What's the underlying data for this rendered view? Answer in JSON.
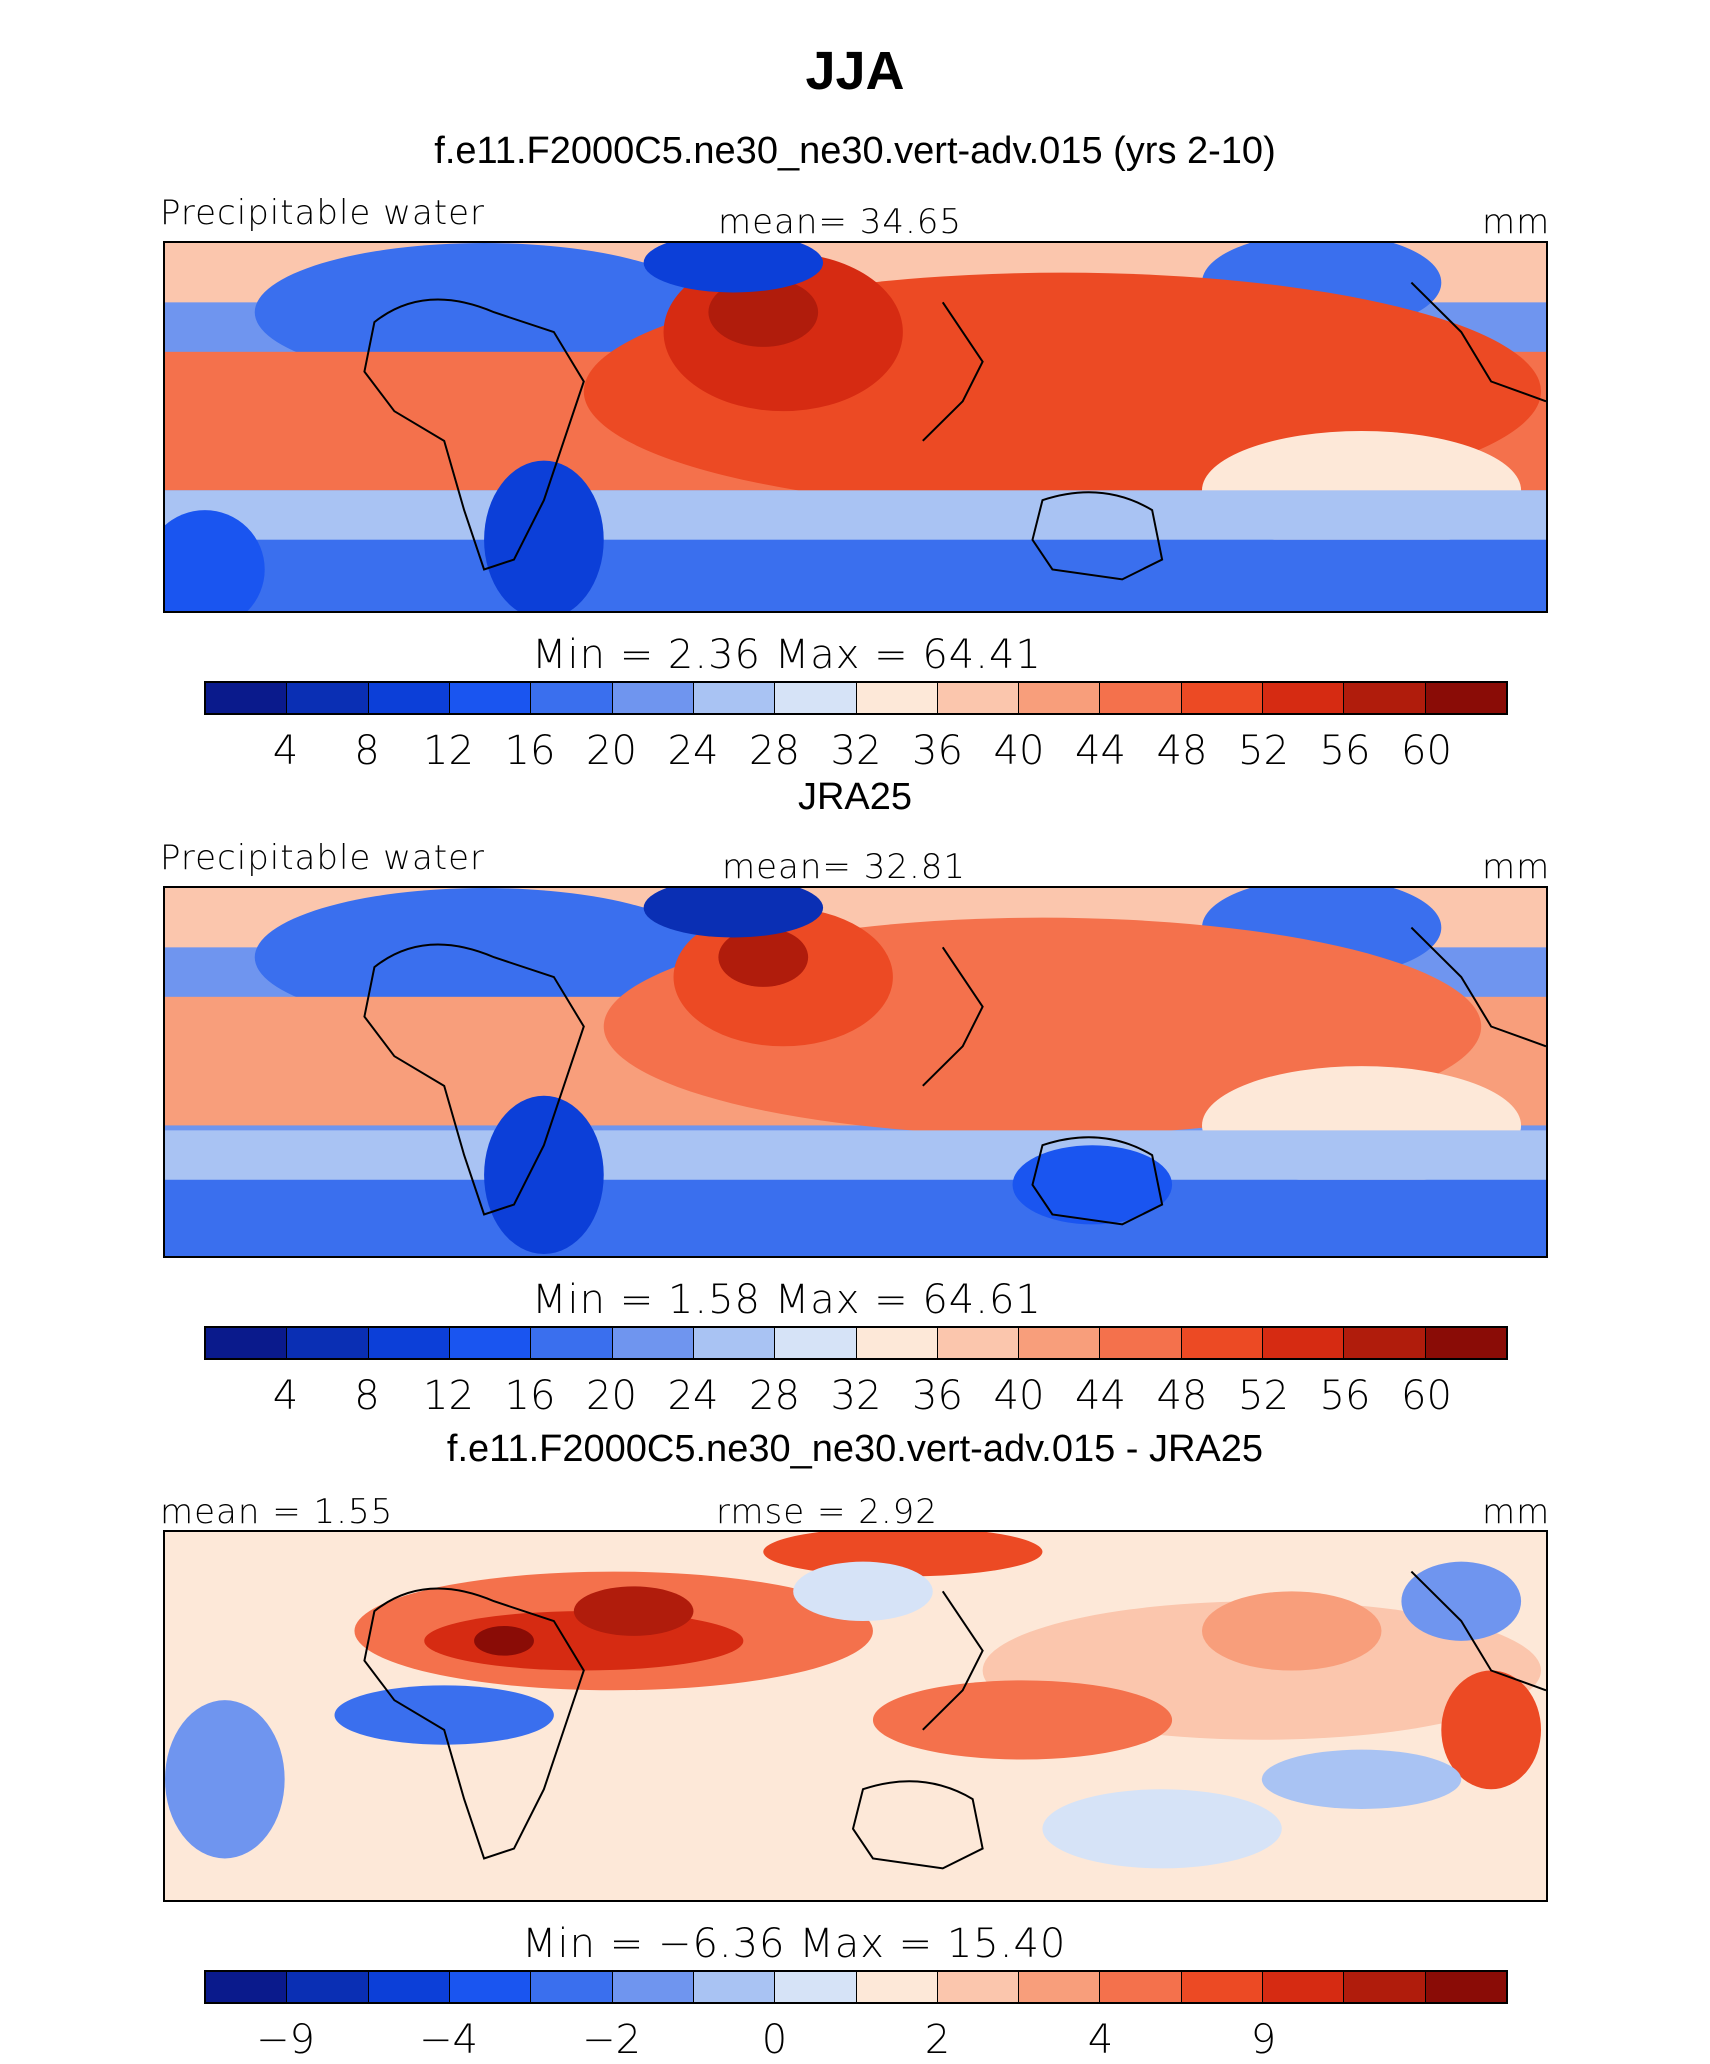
{
  "title": "JJA",
  "colors": [
    "#0a1a8c",
    "#0a2fb4",
    "#0c3fd8",
    "#1a55f0",
    "#3a6fee",
    "#6f95ef",
    "#a9c3f3",
    "#d6e3f7",
    "#fde8d8",
    "#fbc6ad",
    "#f89e7b",
    "#f4714c",
    "#ec4a24",
    "#d62b12",
    "#b01c0c",
    "#8a0c06"
  ],
  "panels": [
    {
      "subtitle": "f.e11.F2000C5.ne30_ne30.vert-adv.015 (yrs 2-10)",
      "left_label": "Precipitable water",
      "center_label": "mean=   34.65",
      "right_label": "mm",
      "minmax": "Min  =     2.36  Max  =    64.41",
      "ticks": [
        "4",
        "8",
        "12",
        "16",
        "20",
        "24",
        "28",
        "32",
        "36",
        "40",
        "44",
        "48",
        "52",
        "56",
        "60"
      ]
    },
    {
      "subtitle": "JRA25",
      "left_label": "Precipitable water",
      "center_label": "mean=   32.81",
      "right_label": "mm",
      "minmax": "Min  =     1.58  Max  =    64.61",
      "ticks": [
        "4",
        "8",
        "12",
        "16",
        "20",
        "24",
        "28",
        "32",
        "36",
        "40",
        "44",
        "48",
        "52",
        "56",
        "60"
      ]
    },
    {
      "subtitle": "f.e11.F2000C5.ne30_ne30.vert-adv.015 - JRA25",
      "left_label": "mean  =     1.55",
      "center_label": "rmse  =     2.92",
      "right_label": "mm",
      "minmax": "Min  =   −6.36  Max  =    15.40",
      "ticks": [
        "−9",
        "",
        "−4",
        "",
        "−2",
        "",
        "0",
        "",
        "2",
        "",
        "4",
        "",
        "9",
        "",
        ""
      ]
    }
  ]
}
